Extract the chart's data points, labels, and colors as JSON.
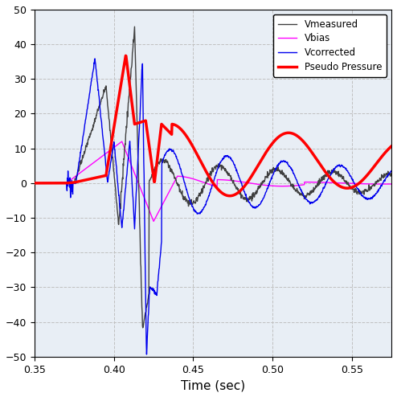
{
  "title": "",
  "xlabel": "Time (sec)",
  "ylabel": "",
  "xlim": [
    0.35,
    0.575
  ],
  "ylim": [
    -50,
    50
  ],
  "yticks": [
    -50,
    -40,
    -30,
    -20,
    -10,
    0,
    10,
    20,
    30,
    40,
    50
  ],
  "xticks": [
    0.35,
    0.4,
    0.45,
    0.5,
    0.55
  ],
  "plot_bg_color": "#e8eef5",
  "fig_bg_color": "#ffffff",
  "grid_color": "#c0c0c0",
  "line_colors": {
    "Vmeasured": "#404040",
    "Vbias": "#ff00ff",
    "Vcorrected": "#0000ee",
    "Pseudo Pressure": "#ff0000"
  },
  "line_widths": {
    "Vmeasured": 1.0,
    "Vbias": 1.0,
    "Vcorrected": 1.0,
    "Pseudo Pressure": 2.5
  }
}
